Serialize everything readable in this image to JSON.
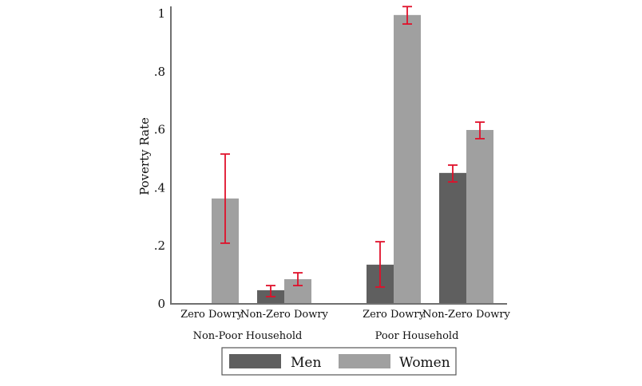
{
  "chart_data": {
    "type": "bar",
    "title": "",
    "xlabel": "",
    "ylabel": "Poverty Rate",
    "ylim": [
      0,
      1
    ],
    "yticks": [
      {
        "value": 0,
        "label": "0"
      },
      {
        "value": 0.2,
        "label": ".2"
      },
      {
        "value": 0.4,
        "label": ".4"
      },
      {
        "value": 0.6,
        "label": ".6"
      },
      {
        "value": 0.8,
        "label": ".8"
      },
      {
        "value": 1.0,
        "label": "1"
      }
    ],
    "grid": false,
    "legend_position": "bottom",
    "groups": [
      {
        "label": "Non-Poor Household",
        "categories": [
          "Zero Dowry",
          "Non-Zero Dowry"
        ]
      },
      {
        "label": "Poor Household",
        "categories": [
          "Zero Dowry",
          "Non-Zero Dowry"
        ]
      }
    ],
    "categories": [
      "Non-Poor Household / Zero Dowry",
      "Non-Poor Household / Non-Zero Dowry",
      "Poor Household / Zero Dowry",
      "Poor Household / Non-Zero Dowry"
    ],
    "series": [
      {
        "name": "Men",
        "color": "#5f5f5f",
        "values": [
          null,
          0.047,
          0.135,
          0.451
        ],
        "ci_low": [
          null,
          0.025,
          0.058,
          0.42
        ],
        "ci_high": [
          null,
          0.063,
          0.214,
          0.478
        ]
      },
      {
        "name": "Women",
        "color": "#a0a0a0",
        "values": [
          0.363,
          0.085,
          0.995,
          0.599
        ],
        "ci_low": [
          0.209,
          0.063,
          0.964,
          0.569
        ],
        "ci_high": [
          0.516,
          0.107,
          1.024,
          0.626
        ]
      }
    ],
    "error_bar_color": "#e0102a",
    "axis_color": "#707070"
  }
}
